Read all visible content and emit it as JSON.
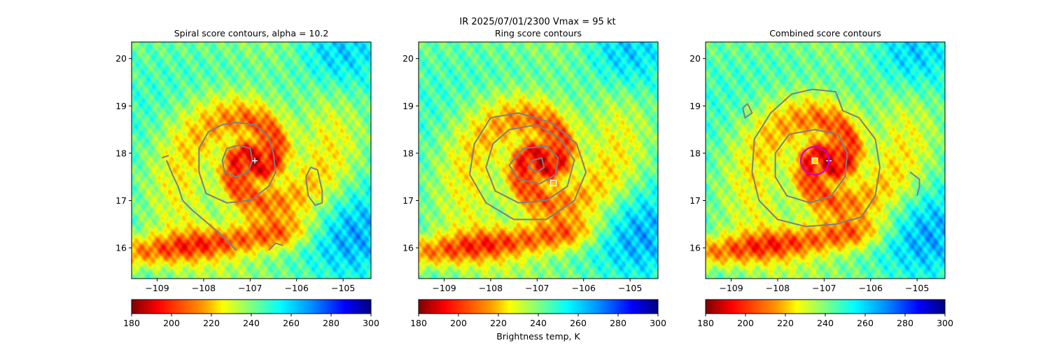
{
  "suptitle": "IR  2025/07/01/2300    Vmax = 95 kt",
  "colors": {
    "contour": "#7f7f7f",
    "marker": "#ffffff",
    "circle": "#cc00cc",
    "square_fill": "#ffd400"
  },
  "chart_data": [
    {
      "type": "heatmap",
      "title": "Spiral score contours, alpha = 10.2",
      "xlabel": "",
      "ylabel": "",
      "xlim": [
        -109.55,
        -104.4
      ],
      "ylim": [
        15.35,
        20.35
      ],
      "xticks": [
        "−109",
        "−108",
        "−107",
        "−106",
        "−105"
      ],
      "xtick_values": [
        -109,
        -108,
        -107,
        -106,
        -105
      ],
      "yticks": [
        "20",
        "19",
        "18",
        "17",
        "16"
      ],
      "ytick_values": [
        20,
        19,
        18,
        17,
        16
      ],
      "colorbar": {
        "min": 180,
        "max": 300,
        "ticks": [
          "180",
          "200",
          "220",
          "240",
          "260",
          "280",
          "300"
        ],
        "tick_values": [
          180,
          200,
          220,
          240,
          260,
          280,
          300
        ],
        "label": ""
      },
      "center_lonlat": [
        -106.9,
        17.84
      ],
      "markers": [
        {
          "kind": "plus",
          "lon": -106.9,
          "lat": 17.84
        }
      ],
      "contours": [
        {
          "label": "inner",
          "points": [
            [
              -107.25,
              18.17
            ],
            [
              -107.0,
              18.1
            ],
            [
              -106.95,
              17.85
            ],
            [
              -107.05,
              17.6
            ],
            [
              -107.3,
              17.5
            ],
            [
              -107.55,
              17.6
            ],
            [
              -107.6,
              17.85
            ],
            [
              -107.5,
              18.1
            ],
            [
              -107.25,
              18.17
            ]
          ]
        },
        {
          "label": "middle",
          "points": [
            [
              -107.3,
              18.65
            ],
            [
              -106.9,
              18.6
            ],
            [
              -106.6,
              18.35
            ],
            [
              -106.5,
              18.0
            ],
            [
              -106.45,
              17.6
            ],
            [
              -106.6,
              17.3
            ],
            [
              -107.0,
              17.0
            ],
            [
              -107.5,
              16.95
            ],
            [
              -107.95,
              17.15
            ],
            [
              -108.1,
              17.6
            ],
            [
              -108.1,
              18.1
            ],
            [
              -107.9,
              18.45
            ],
            [
              -107.6,
              18.6
            ],
            [
              -107.3,
              18.65
            ]
          ]
        },
        {
          "label": "outer",
          "points": [
            [
              -108.8,
              17.85
            ],
            [
              -108.65,
              17.5
            ],
            [
              -108.55,
              17.3
            ],
            [
              -108.45,
              17.0
            ],
            [
              -108.25,
              16.8
            ],
            [
              -107.95,
              16.55
            ],
            [
              -107.65,
              16.3
            ],
            [
              -107.4,
              16.05
            ],
            [
              -107.3,
              15.95
            ]
          ]
        },
        {
          "label": "band-west",
          "points": [
            [
              -108.9,
              17.9
            ],
            [
              -108.75,
              17.95
            ]
          ]
        },
        {
          "label": "band-east",
          "points": [
            [
              -105.7,
              17.7
            ],
            [
              -105.55,
              17.65
            ],
            [
              -105.45,
              17.2
            ],
            [
              -105.45,
              16.95
            ],
            [
              -105.6,
              16.9
            ],
            [
              -105.75,
              17.1
            ],
            [
              -105.8,
              17.5
            ],
            [
              -105.7,
              17.7
            ]
          ]
        },
        {
          "label": "band-south",
          "points": [
            [
              -106.6,
              15.95
            ],
            [
              -106.45,
              16.1
            ],
            [
              -106.3,
              16.05
            ]
          ]
        }
      ]
    },
    {
      "type": "heatmap",
      "title": "Ring score contours",
      "xlabel": "",
      "ylabel": "",
      "xlim": [
        -109.55,
        -104.4
      ],
      "ylim": [
        15.35,
        20.35
      ],
      "xticks": [
        "−109",
        "−108",
        "−107",
        "−106",
        "−105"
      ],
      "xtick_values": [
        -109,
        -108,
        -107,
        -106,
        -105
      ],
      "yticks": [
        "20",
        "19",
        "18",
        "17",
        "16"
      ],
      "ytick_values": [
        20,
        19,
        18,
        17,
        16
      ],
      "colorbar": {
        "min": 180,
        "max": 300,
        "ticks": [
          "180",
          "200",
          "220",
          "240",
          "260",
          "280",
          "300"
        ],
        "tick_values": [
          180,
          200,
          220,
          240,
          260,
          280,
          300
        ],
        "label": "Brightness temp, K"
      },
      "center_lonlat": [
        -106.9,
        17.84
      ],
      "markers": [
        {
          "kind": "square",
          "lon": -106.65,
          "lat": 17.37
        }
      ],
      "contours": [
        {
          "label": "ring-1",
          "points": [
            [
              -107.1,
              17.85
            ],
            [
              -106.9,
              17.9
            ],
            [
              -106.85,
              17.7
            ],
            [
              -107.0,
              17.6
            ],
            [
              -107.2,
              17.7
            ],
            [
              -107.1,
              17.85
            ]
          ]
        },
        {
          "label": "ring-2",
          "points": [
            [
              -107.3,
              18.1
            ],
            [
              -106.8,
              18.15
            ],
            [
              -106.55,
              17.9
            ],
            [
              -106.6,
              17.55
            ],
            [
              -106.95,
              17.35
            ],
            [
              -107.4,
              17.45
            ],
            [
              -107.6,
              17.75
            ],
            [
              -107.3,
              18.1
            ]
          ]
        },
        {
          "label": "ring-3",
          "points": [
            [
              -107.6,
              18.5
            ],
            [
              -107.0,
              18.6
            ],
            [
              -106.5,
              18.3
            ],
            [
              -106.2,
              17.85
            ],
            [
              -106.35,
              17.3
            ],
            [
              -106.8,
              17.0
            ],
            [
              -107.4,
              16.95
            ],
            [
              -107.9,
              17.2
            ],
            [
              -108.1,
              17.7
            ],
            [
              -107.95,
              18.2
            ],
            [
              -107.6,
              18.5
            ]
          ]
        },
        {
          "label": "ring-4",
          "points": [
            [
              -108.0,
              18.75
            ],
            [
              -107.4,
              18.85
            ],
            [
              -106.7,
              18.65
            ],
            [
              -106.15,
              18.2
            ],
            [
              -105.95,
              17.6
            ],
            [
              -106.2,
              17.0
            ],
            [
              -106.8,
              16.6
            ],
            [
              -107.5,
              16.6
            ],
            [
              -108.1,
              16.95
            ],
            [
              -108.45,
              17.55
            ],
            [
              -108.35,
              18.2
            ],
            [
              -108.0,
              18.75
            ]
          ]
        }
      ]
    },
    {
      "type": "heatmap",
      "title": "Combined score contours",
      "xlabel": "",
      "ylabel": "",
      "xlim": [
        -109.55,
        -104.4
      ],
      "ylim": [
        15.35,
        20.35
      ],
      "xticks": [
        "−109",
        "−108",
        "−107",
        "−106",
        "−105"
      ],
      "xtick_values": [
        -109,
        -108,
        -107,
        -106,
        -105
      ],
      "yticks": [
        "20",
        "19",
        "18",
        "17",
        "16"
      ],
      "ytick_values": [
        20,
        19,
        18,
        17,
        16
      ],
      "colorbar": {
        "min": 180,
        "max": 300,
        "ticks": [
          "180",
          "200",
          "220",
          "240",
          "260",
          "280",
          "300"
        ],
        "tick_values": [
          180,
          200,
          220,
          240,
          260,
          280,
          300
        ],
        "label": ""
      },
      "center_lonlat": [
        -106.9,
        17.84
      ],
      "markers": [
        {
          "kind": "plus",
          "lon": -106.9,
          "lat": 17.84
        },
        {
          "kind": "square",
          "lon": -107.2,
          "lat": 17.84
        },
        {
          "kind": "circle",
          "lon": -107.2,
          "lat": 17.84,
          "radius_deg": 0.3
        }
      ],
      "contours": [
        {
          "label": "inner",
          "points": [
            [
              -107.2,
              18.5
            ],
            [
              -106.7,
              18.4
            ],
            [
              -106.5,
              18.0
            ],
            [
              -106.55,
              17.5
            ],
            [
              -106.85,
              17.1
            ],
            [
              -107.3,
              16.95
            ],
            [
              -107.8,
              17.1
            ],
            [
              -108.05,
              17.5
            ],
            [
              -108.05,
              18.0
            ],
            [
              -107.75,
              18.4
            ],
            [
              -107.2,
              18.5
            ]
          ]
        },
        {
          "label": "outer",
          "points": [
            [
              -107.25,
              19.35
            ],
            [
              -106.75,
              19.3
            ],
            [
              -106.6,
              18.9
            ],
            [
              -106.25,
              18.75
            ],
            [
              -105.9,
              18.3
            ],
            [
              -105.8,
              17.7
            ],
            [
              -105.9,
              17.1
            ],
            [
              -106.2,
              16.65
            ],
            [
              -106.75,
              16.5
            ],
            [
              -107.4,
              16.45
            ],
            [
              -108.0,
              16.6
            ],
            [
              -108.4,
              17.0
            ],
            [
              -108.55,
              17.6
            ],
            [
              -108.5,
              18.3
            ],
            [
              -108.15,
              18.85
            ],
            [
              -107.7,
              19.25
            ],
            [
              -107.25,
              19.35
            ]
          ]
        },
        {
          "label": "band-nw",
          "points": [
            [
              -108.65,
              19.05
            ],
            [
              -108.55,
              18.85
            ],
            [
              -108.7,
              18.75
            ],
            [
              -108.75,
              18.95
            ],
            [
              -108.65,
              19.05
            ]
          ]
        },
        {
          "label": "band-east",
          "points": [
            [
              -105.15,
              17.6
            ],
            [
              -104.95,
              17.45
            ],
            [
              -104.95,
              17.3
            ],
            [
              -105.0,
              17.1
            ]
          ]
        }
      ]
    }
  ]
}
